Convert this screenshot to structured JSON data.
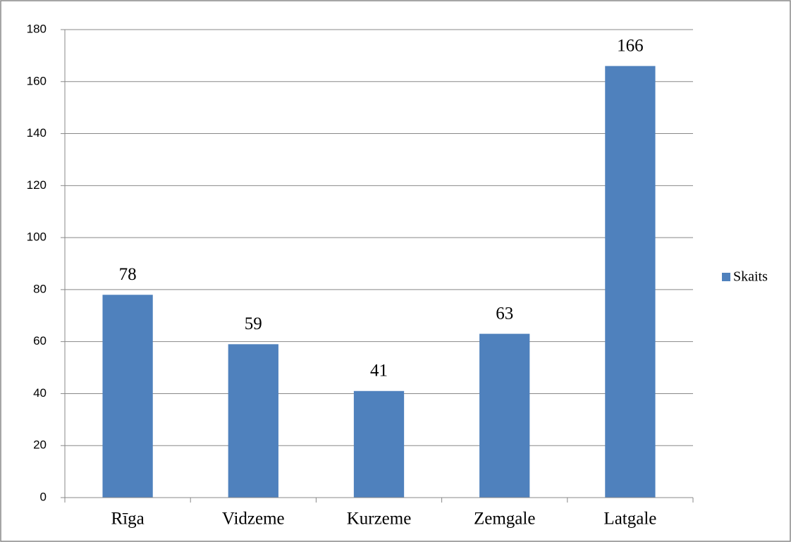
{
  "chart_data": {
    "type": "bar",
    "categories": [
      "Rīga",
      "Vidzeme",
      "Kurzeme",
      "Zemgale",
      "Latgale"
    ],
    "series": [
      {
        "name": "Skaits",
        "color": "#4f81bd",
        "values": [
          78,
          59,
          41,
          63,
          166
        ]
      }
    ],
    "ylim": [
      0,
      180
    ],
    "yticks": [
      0,
      20,
      40,
      60,
      80,
      100,
      120,
      140,
      160,
      180
    ],
    "grid": true,
    "legend": "right",
    "data_labels": true
  }
}
